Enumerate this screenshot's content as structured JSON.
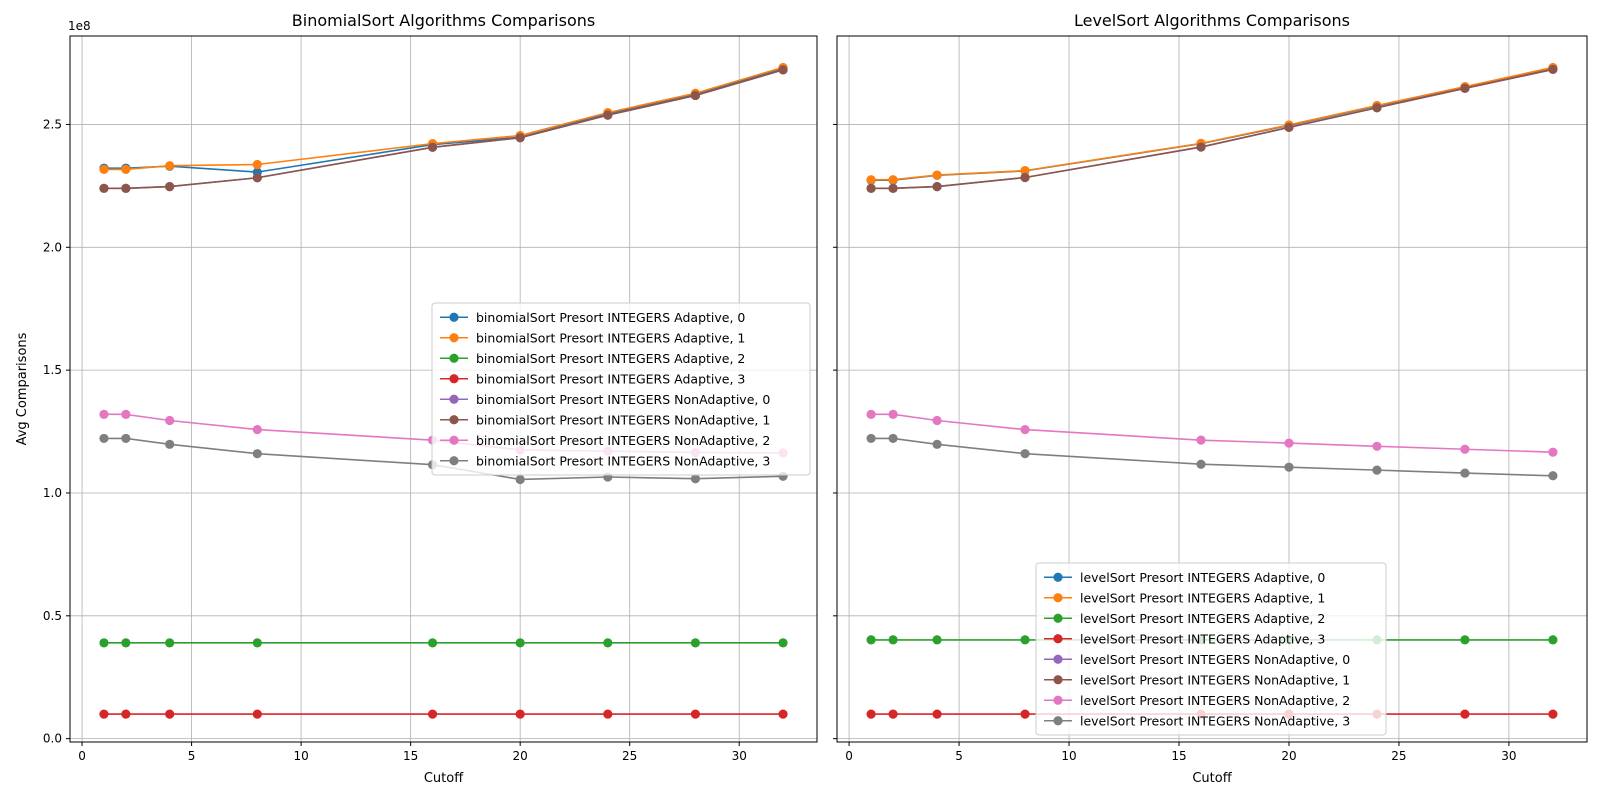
{
  "chart_data": [
    {
      "type": "line",
      "title": "BinomialSort Algorithms Comparisons",
      "xlabel": "Cutoff",
      "ylabel": "Avg Comparisons",
      "y_offset_text": "1e8",
      "x": [
        1,
        2,
        4,
        8,
        16,
        20,
        24,
        28,
        32
      ],
      "xlim": [
        -0.55,
        33.55
      ],
      "ylim": [
        -0.0136,
        2.86
      ],
      "x_ticks": [
        0,
        5,
        10,
        15,
        20,
        25,
        30
      ],
      "y_ticks": [
        0.0,
        0.5,
        1.0,
        1.5,
        2.0,
        2.5
      ],
      "y_tick_labels": [
        "0.0",
        "0.5",
        "1.0",
        "1.5",
        "2.0",
        "2.5"
      ],
      "grid": true,
      "legend_position": "center-right",
      "series": [
        {
          "name": "binomialSort Presort INTEGERS Adaptive, 0",
          "color": "#1f77b4",
          "values": [
            2.322,
            2.322,
            2.33,
            2.306,
            2.418,
            2.448,
            2.543,
            2.623,
            2.728
          ]
        },
        {
          "name": "binomialSort Presort INTEGERS Adaptive, 1",
          "color": "#ff7f0e",
          "values": [
            2.317,
            2.317,
            2.332,
            2.337,
            2.422,
            2.455,
            2.548,
            2.627,
            2.732
          ]
        },
        {
          "name": "binomialSort Presort INTEGERS Adaptive, 2",
          "color": "#2ca02c",
          "values": [
            0.39,
            0.39,
            0.39,
            0.39,
            0.39,
            0.39,
            0.39,
            0.39,
            0.39
          ]
        },
        {
          "name": "binomialSort Presort INTEGERS Adaptive, 3",
          "color": "#d62728",
          "values": [
            0.1,
            0.1,
            0.1,
            0.1,
            0.1,
            0.1,
            0.1,
            0.1,
            0.1
          ]
        },
        {
          "name": "binomialSort Presort INTEGERS NonAdaptive, 0",
          "color": "#9467bd",
          "values": [
            2.24,
            2.24,
            2.247,
            2.283,
            2.407,
            2.446,
            2.538,
            2.618,
            2.722
          ]
        },
        {
          "name": "binomialSort Presort INTEGERS NonAdaptive, 1",
          "color": "#8c564b",
          "values": [
            2.24,
            2.24,
            2.247,
            2.283,
            2.407,
            2.446,
            2.538,
            2.618,
            2.722
          ]
        },
        {
          "name": "binomialSort Presort INTEGERS NonAdaptive, 2",
          "color": "#e377c2",
          "values": [
            1.32,
            1.32,
            1.295,
            1.258,
            1.215,
            1.175,
            1.17,
            1.165,
            1.163
          ]
        },
        {
          "name": "binomialSort Presort INTEGERS NonAdaptive, 3",
          "color": "#7f7f7f",
          "values": [
            1.222,
            1.222,
            1.198,
            1.16,
            1.115,
            1.055,
            1.065,
            1.058,
            1.068
          ]
        }
      ]
    },
    {
      "type": "line",
      "title": "LevelSort Algorithms Comparisons",
      "xlabel": "Cutoff",
      "ylabel": "",
      "y_offset_text": "",
      "x": [
        1,
        2,
        4,
        8,
        16,
        20,
        24,
        28,
        32
      ],
      "xlim": [
        -0.55,
        33.55
      ],
      "ylim": [
        -0.0136,
        2.86
      ],
      "x_ticks": [
        0,
        5,
        10,
        15,
        20,
        25,
        30
      ],
      "y_ticks": [
        0.0,
        0.5,
        1.0,
        1.5,
        2.0,
        2.5
      ],
      "y_tick_labels": [],
      "grid": true,
      "legend_position": "lower-center",
      "series": [
        {
          "name": "levelSort Presort INTEGERS Adaptive, 0",
          "color": "#1f77b4",
          "values": [
            2.273,
            2.273,
            2.293,
            2.311,
            2.422,
            2.496,
            2.575,
            2.652,
            2.73
          ]
        },
        {
          "name": "levelSort Presort INTEGERS Adaptive, 1",
          "color": "#ff7f0e",
          "values": [
            2.275,
            2.275,
            2.294,
            2.312,
            2.423,
            2.498,
            2.577,
            2.654,
            2.732
          ]
        },
        {
          "name": "levelSort Presort INTEGERS Adaptive, 2",
          "color": "#2ca02c",
          "values": [
            0.402,
            0.402,
            0.402,
            0.402,
            0.402,
            0.402,
            0.402,
            0.402,
            0.402
          ]
        },
        {
          "name": "levelSort Presort INTEGERS Adaptive, 3",
          "color": "#d62728",
          "values": [
            0.1,
            0.1,
            0.1,
            0.1,
            0.1,
            0.1,
            0.1,
            0.1,
            0.1
          ]
        },
        {
          "name": "levelSort Presort INTEGERS NonAdaptive, 0",
          "color": "#9467bd",
          "values": [
            2.24,
            2.24,
            2.247,
            2.284,
            2.408,
            2.488,
            2.568,
            2.647,
            2.724
          ]
        },
        {
          "name": "levelSort Presort INTEGERS NonAdaptive, 1",
          "color": "#8c564b",
          "values": [
            2.24,
            2.24,
            2.247,
            2.284,
            2.408,
            2.488,
            2.568,
            2.647,
            2.724
          ]
        },
        {
          "name": "levelSort Presort INTEGERS NonAdaptive, 2",
          "color": "#e377c2",
          "values": [
            1.32,
            1.32,
            1.295,
            1.258,
            1.215,
            1.203,
            1.19,
            1.178,
            1.166
          ]
        },
        {
          "name": "levelSort Presort INTEGERS NonAdaptive, 3",
          "color": "#7f7f7f",
          "values": [
            1.222,
            1.222,
            1.198,
            1.16,
            1.117,
            1.105,
            1.093,
            1.081,
            1.07
          ]
        }
      ]
    }
  ]
}
